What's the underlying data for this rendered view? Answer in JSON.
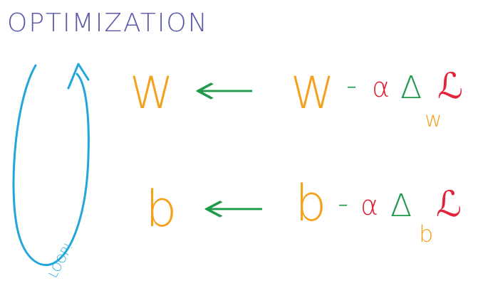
{
  "title": "OPTIMIZATION",
  "loop_label": "LOOP!",
  "colors": {
    "title": "#5b5aa8",
    "loop": "#22a7db",
    "param": "#f4a21c",
    "arrow": "#1f9a4a",
    "alpha": "#e2243a",
    "nabla": "#1f9a4a",
    "loss": "#e2243a"
  },
  "equations": [
    {
      "lhs": "W",
      "arrow": "←",
      "param": "W",
      "minus": "-",
      "alpha": "α",
      "nabla": "Δ",
      "subscript": "w",
      "loss": "ℒ"
    },
    {
      "lhs": "b",
      "arrow": "←",
      "param": "b",
      "minus": "-",
      "alpha": "α",
      "nabla": "Δ",
      "subscript": "b",
      "loss": "ℒ"
    }
  ]
}
